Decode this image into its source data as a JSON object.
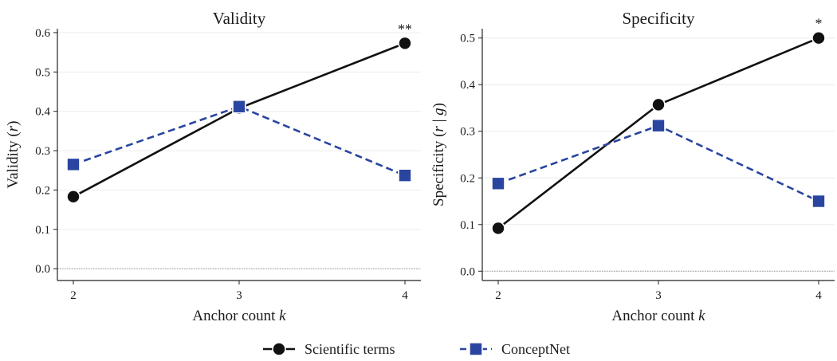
{
  "chart_data": [
    {
      "type": "line",
      "title": "Validity",
      "xlabel": {
        "main": "Anchor count ",
        "var": "k"
      },
      "ylabel": {
        "main": "Validity (",
        "var": "r",
        "close": ")"
      },
      "x": [
        2,
        3,
        4
      ],
      "xticks": [
        "2",
        "3",
        "4"
      ],
      "ylim": [
        -0.03,
        0.61
      ],
      "yticks": [
        "0.0",
        "0.1",
        "0.2",
        "0.3",
        "0.4",
        "0.5",
        "0.6"
      ],
      "ytick_values": [
        0,
        0.1,
        0.2,
        0.3,
        0.4,
        0.5,
        0.6
      ],
      "grid": true,
      "zero_line": true,
      "series": [
        {
          "key": "scientific",
          "values": [
            0.183,
            0.408,
            0.573
          ]
        },
        {
          "key": "conceptnet",
          "values": [
            0.265,
            0.412,
            0.237
          ]
        }
      ],
      "annotations": [
        {
          "x": 4,
          "y": 0.573,
          "text": "**"
        }
      ]
    },
    {
      "type": "line",
      "title": "Specificity",
      "xlabel": {
        "main": "Anchor count ",
        "var": "k"
      },
      "ylabel": {
        "main": "Specificity (",
        "var": "r",
        "mid": " | ",
        "var2": "g",
        "close": ")"
      },
      "x": [
        2,
        3,
        4
      ],
      "xticks": [
        "2",
        "3",
        "4"
      ],
      "ylim": [
        -0.02,
        0.52
      ],
      "yticks": [
        "0.0",
        "0.1",
        "0.2",
        "0.3",
        "0.4",
        "0.5"
      ],
      "ytick_values": [
        0,
        0.1,
        0.2,
        0.3,
        0.4,
        0.5
      ],
      "grid": true,
      "zero_line": true,
      "series": [
        {
          "key": "scientific",
          "values": [
            0.092,
            0.357,
            0.5
          ]
        },
        {
          "key": "conceptnet",
          "values": [
            0.188,
            0.312,
            0.15
          ]
        }
      ],
      "annotations": [
        {
          "x": 4,
          "y": 0.5,
          "text": "*"
        }
      ]
    }
  ],
  "legend": {
    "placement": "bottom-center",
    "items": [
      {
        "key": "scientific",
        "label": "Scientific terms",
        "color": "#111111",
        "marker": "circle",
        "linestyle": "solid"
      },
      {
        "key": "conceptnet",
        "label": "ConceptNet",
        "color": "#2a45a0",
        "marker": "square",
        "linestyle": "dashed"
      }
    ]
  },
  "colors": {
    "scientific": "#111111",
    "conceptnet": "#2a45a0",
    "grid": "#ececec",
    "zero_line": "#9a9a9a"
  }
}
